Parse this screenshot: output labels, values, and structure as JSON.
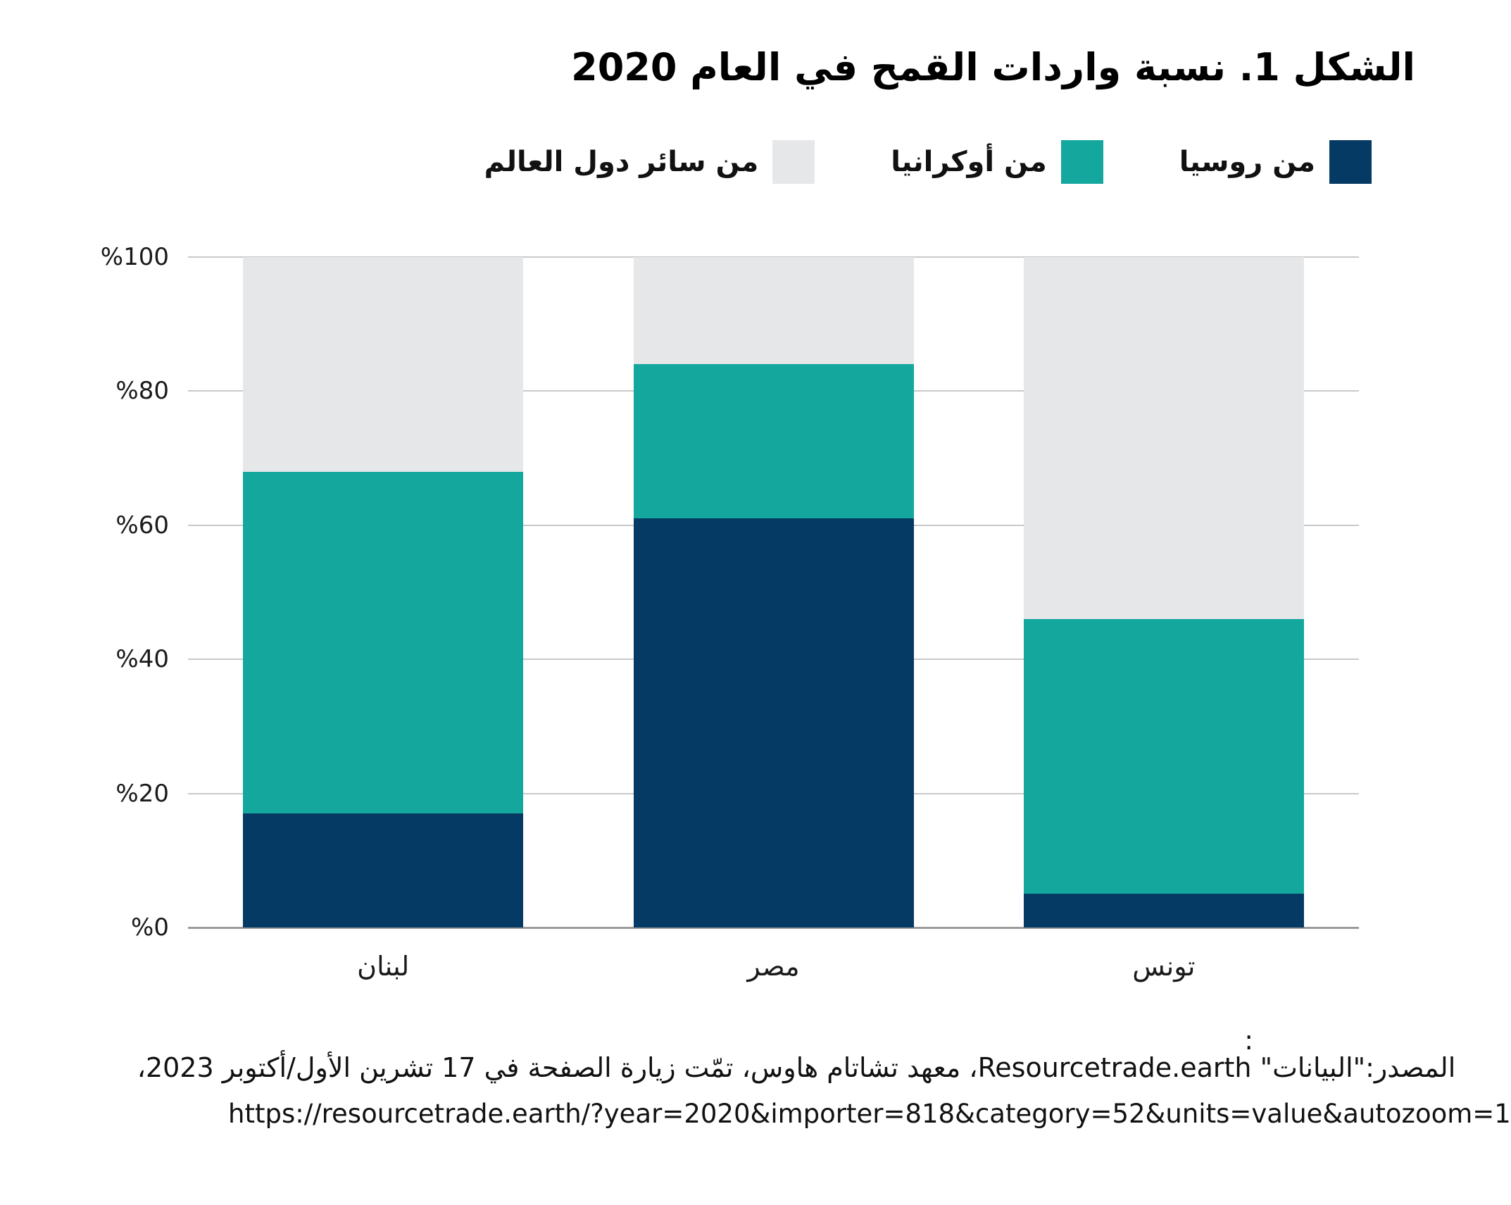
{
  "title": "الشكل 1. نسبة واردات القمح في العام 2020",
  "legend": [
    {
      "label": "من روسيا",
      "color": "#043a63"
    },
    {
      "label": "من أوكرانيا",
      "color": "#14a79e"
    },
    {
      "label": "من سائر دول العالم",
      "color": "#e6e7e9"
    }
  ],
  "chart_data": {
    "type": "bar",
    "stacked": true,
    "title": "الشكل 1. نسبة واردات القمح في العام 2020",
    "categories": [
      "لبنان",
      "مصر",
      "تونس"
    ],
    "series": [
      {
        "name": "من روسيا",
        "color": "#043a63",
        "values": [
          17,
          61,
          5
        ]
      },
      {
        "name": "من أوكرانيا",
        "color": "#14a79e",
        "values": [
          51,
          23,
          41
        ]
      },
      {
        "name": "من سائر دول العالم",
        "color": "#e6e7e9",
        "values": [
          32,
          16,
          54
        ]
      }
    ],
    "y_ticks": [
      "%100",
      "%80",
      "%60",
      "%40",
      "%20",
      "%0"
    ],
    "ylim": [
      0,
      100
    ],
    "grid": true,
    "legend_position": "top-right"
  },
  "source": {
    "colon": ":",
    "line1": "المصدر:\"البيانات\" Resourcetrade.earth، معهد تشاتام هاوس، تمّت زيارة الصفحة في 17 تشرين الأول/أكتوبر 2023،",
    "line2": "https://resourcetrade.earth/?year=2020&importer=818&category=52&units=value&autozoom=1"
  }
}
